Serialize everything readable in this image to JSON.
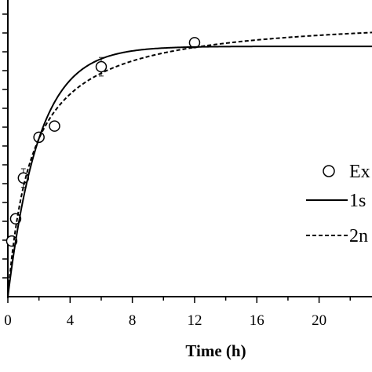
{
  "chart_data": {
    "type": "line",
    "xlabel": "Time (h)",
    "ylabel": "",
    "xlim": [
      0,
      23.4
    ],
    "ylim": [
      0,
      1.6
    ],
    "x_ticks": [
      "0",
      "4",
      "8",
      "12",
      "16",
      "20"
    ],
    "legend": {
      "placement": "right",
      "entries": [
        "Ex",
        "1s",
        "2n"
      ]
    },
    "series": [
      {
        "name": "Ex",
        "style": "open-circle",
        "points": [
          {
            "x": 0.25,
            "y": 0.3,
            "err": 0.02
          },
          {
            "x": 0.5,
            "y": 0.42,
            "err": 0.02
          },
          {
            "x": 1.0,
            "y": 0.64,
            "err": 0.05
          },
          {
            "x": 2.0,
            "y": 0.86,
            "err": 0.02
          },
          {
            "x": 3.0,
            "y": 0.92,
            "err": 0.02
          },
          {
            "x": 6.0,
            "y": 1.24,
            "err": 0.05
          },
          {
            "x": 12.0,
            "y": 1.37,
            "err": 0.02
          }
        ]
      },
      {
        "name": "1s",
        "style": "solid",
        "model": "first-order",
        "params": {
          "ymax": 1.35,
          "k": 0.5
        }
      },
      {
        "name": "2n",
        "style": "dashed",
        "model": "second-order",
        "params": {
          "ymax": 1.52,
          "k": 0.42
        }
      }
    ]
  }
}
